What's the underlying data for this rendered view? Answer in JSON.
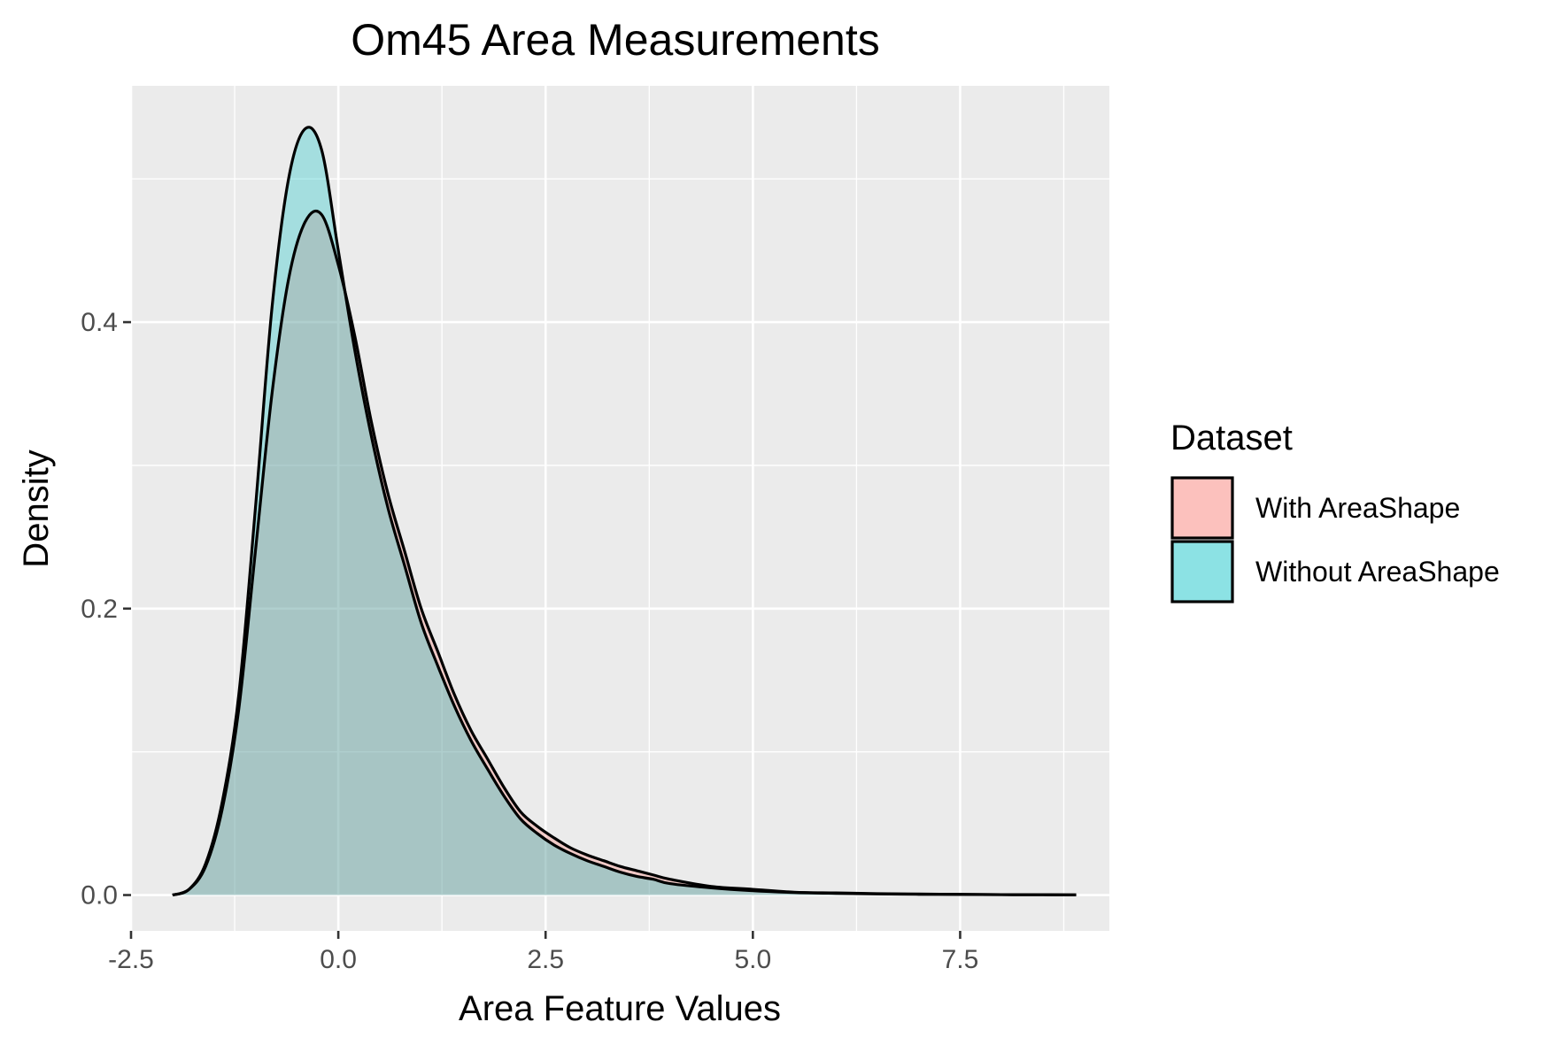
{
  "chart_data": {
    "type": "area",
    "title": "Om45 Area Measurements",
    "xlabel": "Area Feature Values",
    "ylabel": "Density",
    "xlim": [
      -2.5,
      9.3
    ],
    "ylim": [
      -0.025,
      0.565
    ],
    "x_ticks": [
      -2.5,
      0.0,
      2.5,
      5.0,
      7.5
    ],
    "x_tick_labels": [
      "-2.5",
      "0.0",
      "2.5",
      "5.0",
      "7.5"
    ],
    "y_ticks": [
      0.0,
      0.2,
      0.4
    ],
    "y_tick_labels": [
      "0.0",
      "0.2",
      "0.4"
    ],
    "grid": true,
    "legend": {
      "title": "Dataset",
      "position": "right"
    },
    "series": [
      {
        "name": "With AreaShape",
        "color": "#F8766D",
        "x": [
          -2.0,
          -1.8,
          -1.6,
          -1.4,
          -1.2,
          -1.0,
          -0.8,
          -0.6,
          -0.4,
          -0.2,
          0.0,
          0.2,
          0.4,
          0.6,
          0.8,
          1.0,
          1.2,
          1.4,
          1.6,
          1.8,
          2.0,
          2.2,
          2.4,
          2.6,
          2.8,
          3.0,
          3.2,
          3.4,
          3.6,
          3.8,
          4.0,
          4.5,
          5.0,
          5.5,
          6.0,
          6.5,
          7.0,
          7.5,
          8.0,
          8.5,
          8.9
        ],
        "values": [
          0.0,
          0.004,
          0.02,
          0.06,
          0.13,
          0.24,
          0.35,
          0.43,
          0.47,
          0.475,
          0.44,
          0.39,
          0.33,
          0.28,
          0.24,
          0.2,
          0.17,
          0.14,
          0.115,
          0.095,
          0.075,
          0.058,
          0.048,
          0.04,
          0.033,
          0.028,
          0.024,
          0.02,
          0.017,
          0.014,
          0.011,
          0.006,
          0.004,
          0.002,
          0.0015,
          0.001,
          0.0007,
          0.0005,
          0.0003,
          0.0002,
          0.0001
        ]
      },
      {
        "name": "Without AreaShape",
        "color": "#00BFC4",
        "x": [
          -2.0,
          -1.8,
          -1.6,
          -1.4,
          -1.2,
          -1.0,
          -0.8,
          -0.6,
          -0.4,
          -0.2,
          0.0,
          0.2,
          0.4,
          0.6,
          0.8,
          1.0,
          1.2,
          1.4,
          1.6,
          1.8,
          2.0,
          2.2,
          2.4,
          2.6,
          2.8,
          3.0,
          3.2,
          3.4,
          3.6,
          3.8,
          4.0,
          4.5,
          5.0,
          5.5,
          6.0,
          6.5,
          7.0,
          7.5,
          8.0,
          8.5,
          8.9
        ],
        "values": [
          0.0,
          0.004,
          0.022,
          0.065,
          0.14,
          0.27,
          0.41,
          0.5,
          0.535,
          0.52,
          0.45,
          0.38,
          0.32,
          0.27,
          0.23,
          0.19,
          0.16,
          0.132,
          0.108,
          0.088,
          0.069,
          0.053,
          0.043,
          0.035,
          0.029,
          0.024,
          0.02,
          0.016,
          0.013,
          0.011,
          0.008,
          0.005,
          0.003,
          0.0018,
          0.0012,
          0.0008,
          0.0005,
          0.0004,
          0.0003,
          0.0002,
          0.0001
        ]
      }
    ]
  }
}
